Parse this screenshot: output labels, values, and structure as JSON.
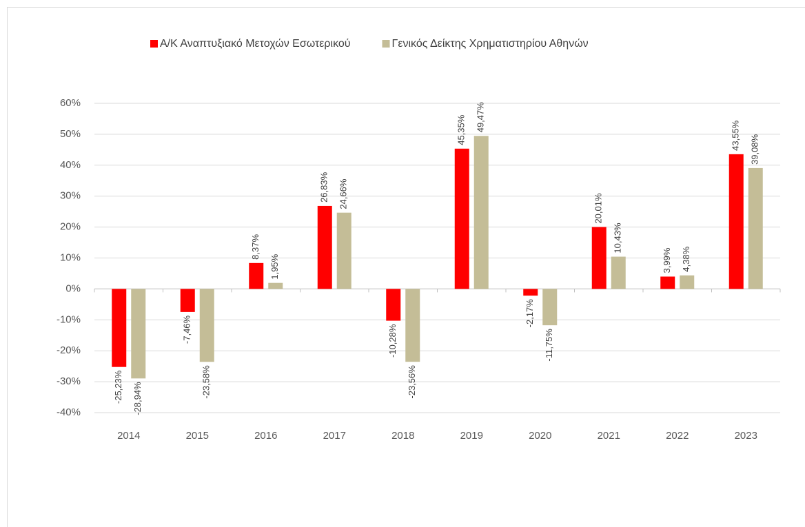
{
  "chart_data": {
    "type": "bar",
    "categories": [
      "2014",
      "2015",
      "2016",
      "2017",
      "2018",
      "2019",
      "2020",
      "2021",
      "2022",
      "2023"
    ],
    "series": [
      {
        "name": "Α/Κ Αναπτυξιακό Μετοχών Εσωτερικού",
        "color": "#ff0000",
        "values": [
          -25.23,
          -7.46,
          8.37,
          26.83,
          -10.28,
          45.35,
          -2.17,
          20.01,
          3.99,
          43.55
        ],
        "value_labels": [
          "-25,23%",
          "-7,46%",
          "8,37%",
          "26,83%",
          "-10,28%",
          "45,35%",
          "-2,17%",
          "20,01%",
          "3,99%",
          "43,55%"
        ]
      },
      {
        "name": "Γενικός Δείκτης Χρηματιστηρίου Αθηνών",
        "color": "#c4bd97",
        "values": [
          -28.94,
          -23.58,
          1.95,
          24.66,
          -23.56,
          49.47,
          -11.75,
          10.43,
          4.38,
          39.08
        ],
        "value_labels": [
          "-28,94%",
          "-23,58%",
          "1,95%",
          "24,66%",
          "-23,56%",
          "49,47%",
          "-11,75%",
          "10,43%",
          "4,38%",
          "39,08%"
        ]
      }
    ],
    "ylim": [
      -40,
      60
    ],
    "yticks": [
      {
        "value": -40,
        "label": "-40%"
      },
      {
        "value": -30,
        "label": "-30%"
      },
      {
        "value": -20,
        "label": "-20%"
      },
      {
        "value": -10,
        "label": "-10%"
      },
      {
        "value": 0,
        "label": "0%"
      },
      {
        "value": 10,
        "label": "10%"
      },
      {
        "value": 20,
        "label": "20%"
      },
      {
        "value": 30,
        "label": "30%"
      },
      {
        "value": 40,
        "label": "40%"
      },
      {
        "value": 50,
        "label": "50%"
      },
      {
        "value": 60,
        "label": "60%"
      }
    ],
    "grid": true,
    "legend": "top"
  }
}
